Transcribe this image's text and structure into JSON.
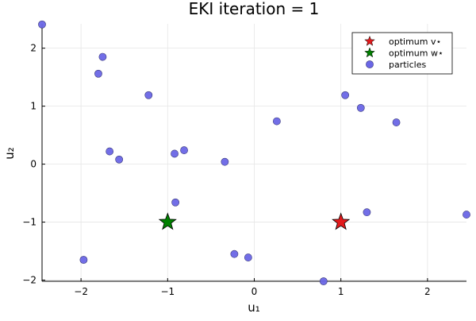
{
  "chart_data": {
    "type": "scatter",
    "title": "EKI iteration = 1",
    "xlabel": "u₁",
    "ylabel": "u₂",
    "xlim": [
      -2.45,
      2.45
    ],
    "ylim": [
      -2.02,
      2.42
    ],
    "x_ticks": [
      -2,
      -1,
      0,
      1,
      2
    ],
    "y_ticks": [
      -2,
      -1,
      0,
      1,
      2
    ],
    "x_tick_labels": [
      "−2",
      "−1",
      "0",
      "1",
      "2"
    ],
    "y_tick_labels": [
      "−2",
      "−1",
      "0",
      "1",
      "2"
    ],
    "grid": true,
    "legend_position": "top-right",
    "series": [
      {
        "name": "optimum v⋆",
        "marker": "star",
        "color": "#e31a1c",
        "points": [
          [
            1.0,
            -1.0
          ]
        ]
      },
      {
        "name": "optimum w⋆",
        "marker": "star",
        "color": "#008000",
        "points": [
          [
            -1.0,
            -1.0
          ]
        ]
      },
      {
        "name": "particles",
        "marker": "circle",
        "color": "#6a66e6",
        "points": [
          [
            -2.45,
            2.41
          ],
          [
            -1.8,
            1.56
          ],
          [
            -1.75,
            1.85
          ],
          [
            -1.22,
            1.19
          ],
          [
            -1.67,
            0.22
          ],
          [
            -1.56,
            0.08
          ],
          [
            -0.92,
            0.18
          ],
          [
            -0.81,
            0.24
          ],
          [
            -0.34,
            0.04
          ],
          [
            -0.91,
            -0.66
          ],
          [
            0.26,
            0.74
          ],
          [
            1.05,
            1.19
          ],
          [
            1.23,
            0.97
          ],
          [
            1.64,
            0.72
          ],
          [
            1.3,
            -0.83
          ],
          [
            2.45,
            -0.87
          ],
          [
            -1.97,
            -1.65
          ],
          [
            -0.23,
            -1.55
          ],
          [
            -0.07,
            -1.61
          ],
          [
            0.8,
            -2.02
          ]
        ]
      }
    ]
  }
}
